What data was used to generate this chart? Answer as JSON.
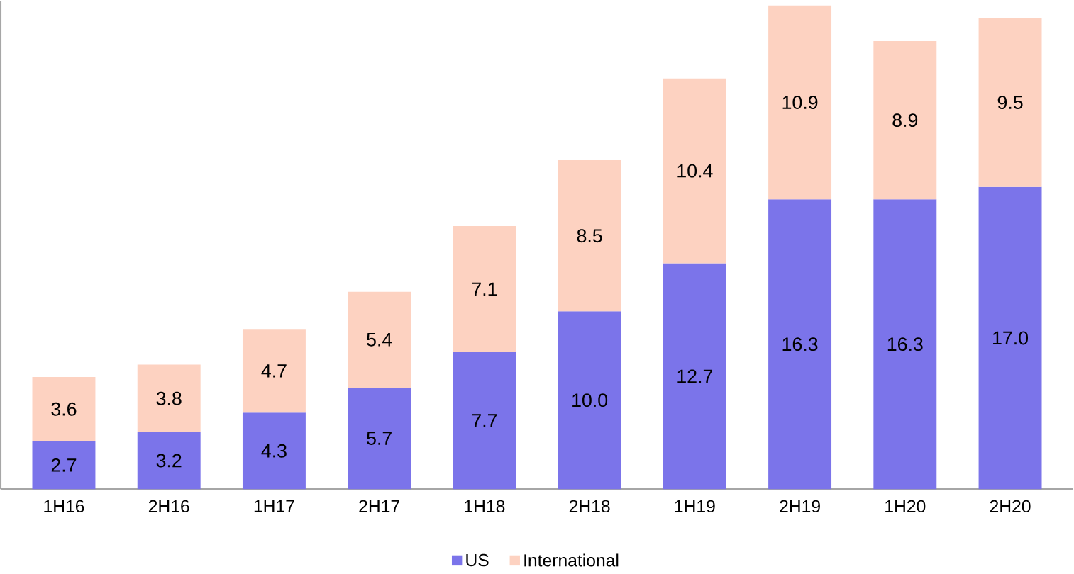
{
  "chart_data": {
    "type": "bar",
    "stacked": true,
    "legend": "bottom",
    "categories": [
      "1H16",
      "2H16",
      "1H17",
      "2H17",
      "1H18",
      "2H18",
      "1H19",
      "2H19",
      "1H20",
      "2H20"
    ],
    "series": [
      {
        "name": "US",
        "color": "#7b74ea",
        "values": [
          2.7,
          3.2,
          4.3,
          5.7,
          7.7,
          10.0,
          12.7,
          16.3,
          16.3,
          17.0
        ],
        "value_labels": [
          "2.7",
          "3.2",
          "4.3",
          "5.7",
          "7.7",
          "10.0",
          "12.7",
          "16.3",
          "16.3",
          "17.0"
        ]
      },
      {
        "name": "International",
        "color": "#fdd2c1",
        "values": [
          3.6,
          3.8,
          4.7,
          5.4,
          7.1,
          8.5,
          10.4,
          10.9,
          8.9,
          9.5
        ],
        "value_labels": [
          "3.6",
          "3.8",
          "4.7",
          "5.4",
          "7.1",
          "8.5",
          "10.4",
          "10.9",
          "8.9",
          "9.5"
        ]
      }
    ]
  }
}
